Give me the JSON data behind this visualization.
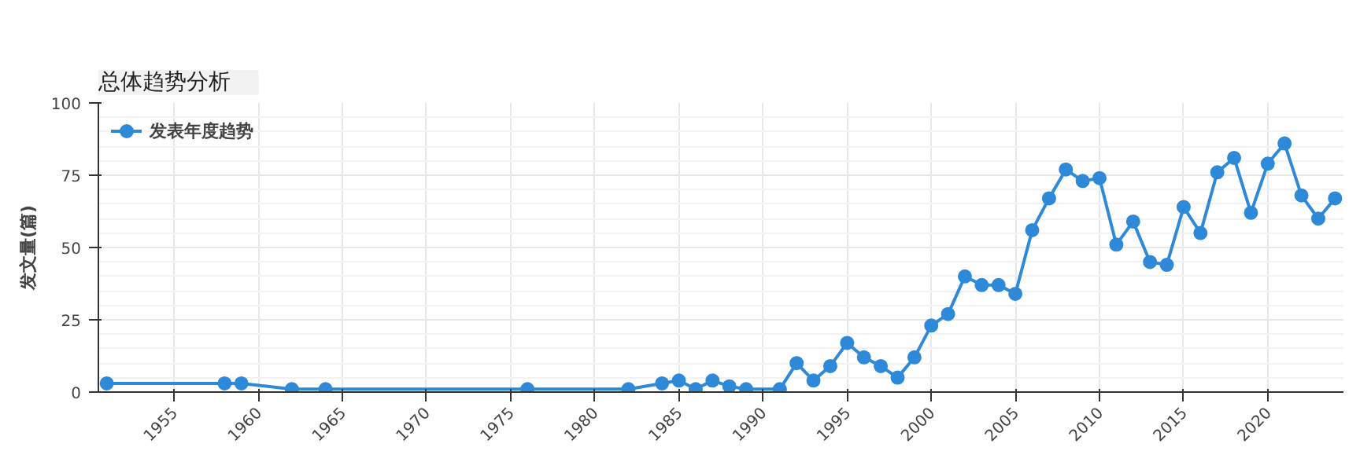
{
  "chart_data": {
    "type": "line",
    "title": "总体趋势分析",
    "ylabel": "发文量(篇)",
    "x": [
      1951,
      1958,
      1959,
      1962,
      1964,
      1976,
      1982,
      1984,
      1985,
      1986,
      1987,
      1988,
      1989,
      1991,
      1992,
      1993,
      1994,
      1995,
      1996,
      1997,
      1998,
      1999,
      2000,
      2001,
      2002,
      2003,
      2004,
      2005,
      2006,
      2007,
      2008,
      2009,
      2010,
      2011,
      2012,
      2013,
      2014,
      2015,
      2016,
      2017,
      2018,
      2019,
      2020,
      2021,
      2022,
      2023,
      2024
    ],
    "series": [
      {
        "name": "发表年度趋势",
        "color": "#2e8ad8",
        "values": [
          3,
          3,
          3,
          1,
          1,
          1,
          1,
          3,
          4,
          1,
          4,
          2,
          1,
          1,
          10,
          4,
          9,
          17,
          12,
          9,
          5,
          12,
          23,
          27,
          40,
          37,
          37,
          34,
          56,
          67,
          77,
          73,
          74,
          51,
          59,
          45,
          44,
          64,
          55,
          76,
          81,
          62,
          79,
          86,
          68,
          60,
          67
        ]
      }
    ],
    "xlim": [
      1950.5,
      2024.5
    ],
    "xticks": [
      1955,
      1960,
      1965,
      1970,
      1975,
      1980,
      1985,
      1990,
      1995,
      2000,
      2005,
      2010,
      2015,
      2020
    ],
    "ylim": [
      0,
      100
    ],
    "yticks": [
      0,
      25,
      50,
      75,
      100
    ],
    "grid": true,
    "legend": "top left",
    "marker": "circle",
    "line_style": "solid"
  }
}
